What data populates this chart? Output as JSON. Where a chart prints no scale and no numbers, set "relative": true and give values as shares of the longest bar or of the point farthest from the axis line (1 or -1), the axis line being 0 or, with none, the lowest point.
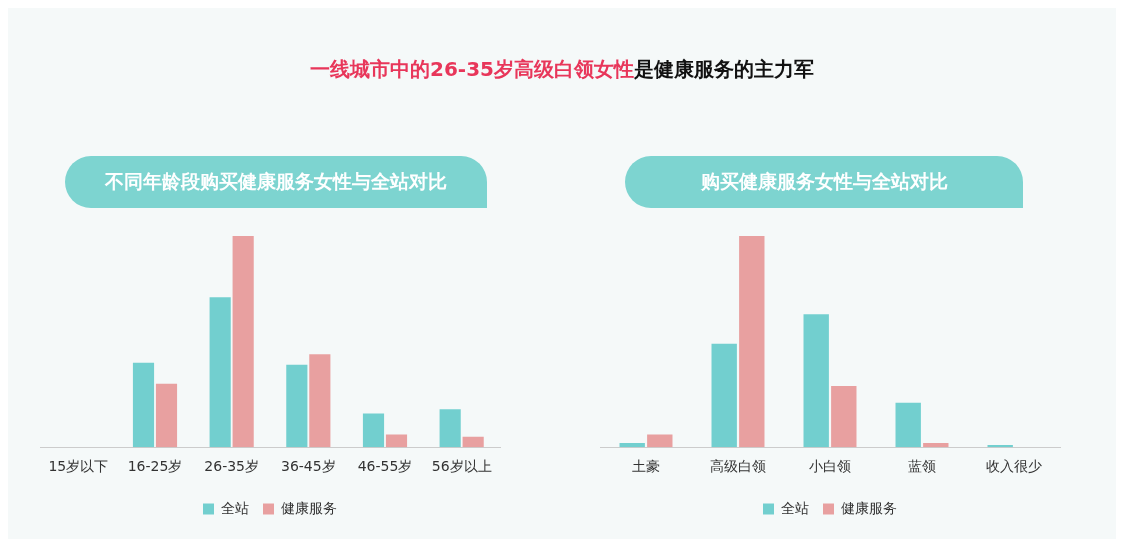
{
  "chart_data": [
    {
      "type": "other",
      "annotations": [
        "一线城市中的26-35岁高级白领女性",
        "是健康服务的主力军"
      ]
    },
    {
      "type": "bar",
      "title": "不同年龄段购买健康服务女性与全站对比",
      "relative": true,
      "legend": "bottom",
      "categories": [
        "15岁以下",
        "16-25岁",
        "26-35岁",
        "36-45岁",
        "46-55岁",
        "56岁以上"
      ],
      "series": [
        {
          "name": "全站",
          "color": "#72cfcf",
          "values": [
            0,
            0.4,
            0.71,
            0.39,
            0.16,
            0.18
          ]
        },
        {
          "name": "健康服务",
          "color": "#e8a0a0",
          "values": [
            0,
            0.3,
            1,
            0.44,
            0.06,
            0.05
          ]
        }
      ]
    },
    {
      "type": "bar",
      "title": "购买健康服务女性与全站对比",
      "relative": true,
      "legend": "bottom",
      "categories": [
        "土豪",
        "高级白领",
        "小白领",
        "蓝领",
        "收入很少"
      ],
      "series": [
        {
          "name": "全站",
          "color": "#72cfcf",
          "values": [
            0.02,
            0.49,
            0.63,
            0.21,
            0.01
          ]
        },
        {
          "name": "健康服务",
          "color": "#e8a0a0",
          "values": [
            0.06,
            1,
            0.29,
            0.02,
            0
          ]
        }
      ]
    }
  ]
}
